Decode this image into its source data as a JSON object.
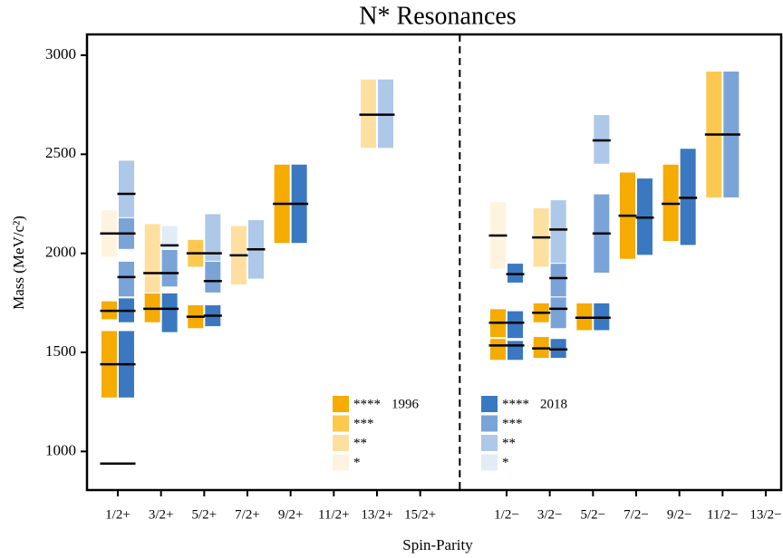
{
  "chart_data": {
    "type": "resonance",
    "title": "N* Resonances",
    "x_label": "Spin-Parity",
    "y_label": "Mass (MeV/c²)",
    "ylim": [
      805,
      3105
    ],
    "yticks": [
      1000,
      1500,
      2000,
      2500,
      3000
    ],
    "categories": [
      "1/2+",
      "3/2+",
      "5/2+",
      "7/2+",
      "9/2+",
      "11/2+",
      "13/2+",
      "15/2+",
      null,
      "1/2−",
      "3/2−",
      "5/2−",
      "7/2−",
      "9/2−",
      "11/2−",
      "13/2−"
    ],
    "ratings": [
      {
        "label": "****"
      },
      {
        "label": "***"
      },
      {
        "label": "**"
      },
      {
        "label": "*"
      }
    ],
    "series": [
      {
        "name": "1996",
        "colors": [
          "#f5ab00",
          "#fcc84f",
          "#fde0a0",
          "#fef3de"
        ],
        "values": [
          [
            {
              "mass": 939,
              "low": 939,
              "high": 939,
              "rating": "****"
            },
            {
              "mass": 1440,
              "low": 1270,
              "high": 1610,
              "rating": "****"
            },
            {
              "mass": 1710,
              "low": 1665,
              "high": 1760,
              "rating": "****"
            },
            {
              "mass": 2100,
              "low": 1980,
              "high": 2220,
              "rating": "*"
            }
          ],
          [
            {
              "mass": 1720,
              "low": 1650,
              "high": 1800,
              "rating": "****"
            },
            {
              "mass": 1900,
              "low": 1800,
              "high": 2150,
              "rating": "**"
            }
          ],
          [
            {
              "mass": 1680,
              "low": 1620,
              "high": 1740,
              "rating": "****"
            },
            {
              "mass": 2000,
              "low": 1930,
              "high": 2070,
              "rating": "***"
            }
          ],
          [
            {
              "mass": 1990,
              "low": 1840,
              "high": 2140,
              "rating": "**"
            }
          ],
          [
            {
              "mass": 2250,
              "low": 2050,
              "high": 2450,
              "rating": "****"
            }
          ],
          [],
          [
            {
              "mass": 2700,
              "low": 2530,
              "high": 2880,
              "rating": "**"
            }
          ],
          [],
          [],
          [
            {
              "mass": 1535,
              "low": 1460,
              "high": 1570,
              "rating": "****"
            },
            {
              "mass": 1650,
              "low": 1575,
              "high": 1720,
              "rating": "****"
            },
            {
              "mass": 2090,
              "low": 1920,
              "high": 2260,
              "rating": "*"
            }
          ],
          [
            {
              "mass": 1520,
              "low": 1470,
              "high": 1580,
              "rating": "****"
            },
            {
              "mass": 1700,
              "low": 1650,
              "high": 1750,
              "rating": "****"
            },
            {
              "mass": 2080,
              "low": 1930,
              "high": 2230,
              "rating": "**"
            }
          ],
          [
            {
              "mass": 1675,
              "low": 1610,
              "high": 1750,
              "rating": "****"
            }
          ],
          [
            {
              "mass": 2190,
              "low": 1970,
              "high": 2410,
              "rating": "****"
            }
          ],
          [
            {
              "mass": 2250,
              "low": 2060,
              "high": 2450,
              "rating": "****"
            }
          ],
          [
            {
              "mass": 2600,
              "low": 2280,
              "high": 2920,
              "rating": "***"
            }
          ],
          []
        ]
      },
      {
        "name": "2018",
        "colors": [
          "#3a78c2",
          "#7aa3d8",
          "#adc8e8",
          "#e2ecf7"
        ],
        "values": [
          [
            {
              "mass": 939,
              "low": 939,
              "high": 939,
              "rating": "****"
            },
            {
              "mass": 1440,
              "low": 1270,
              "high": 1610,
              "rating": "****"
            },
            {
              "mass": 1710,
              "low": 1650,
              "high": 1775,
              "rating": "****"
            },
            {
              "mass": 1880,
              "low": 1780,
              "high": 1960,
              "rating": "***"
            },
            {
              "mass": 2100,
              "low": 2020,
              "high": 2180,
              "rating": "***"
            },
            {
              "mass": 2300,
              "low": 2180,
              "high": 2470,
              "rating": "**"
            }
          ],
          [
            {
              "mass": 1720,
              "low": 1600,
              "high": 1800,
              "rating": "****"
            },
            {
              "mass": 1900,
              "low": 1830,
              "high": 2020,
              "rating": "***"
            },
            {
              "mass": 2040,
              "low": 2020,
              "high": 2140,
              "rating": "*"
            }
          ],
          [
            {
              "mass": 1685,
              "low": 1630,
              "high": 1740,
              "rating": "****"
            },
            {
              "mass": 1860,
              "low": 1800,
              "high": 1960,
              "rating": "***"
            },
            {
              "mass": 2000,
              "low": 1960,
              "high": 2200,
              "rating": "**"
            }
          ],
          [
            {
              "mass": 2020,
              "low": 1870,
              "high": 2170,
              "rating": "**"
            }
          ],
          [
            {
              "mass": 2250,
              "low": 2050,
              "high": 2450,
              "rating": "****"
            }
          ],
          [],
          [
            {
              "mass": 2700,
              "low": 2530,
              "high": 2880,
              "rating": "**"
            }
          ],
          [],
          [],
          [
            {
              "mass": 1535,
              "low": 1460,
              "high": 1560,
              "rating": "****"
            },
            {
              "mass": 1650,
              "low": 1570,
              "high": 1710,
              "rating": "****"
            },
            {
              "mass": 1895,
              "low": 1850,
              "high": 1950,
              "rating": "****"
            }
          ],
          [
            {
              "mass": 1515,
              "low": 1470,
              "high": 1570,
              "rating": "****"
            },
            {
              "mass": 1720,
              "low": 1620,
              "high": 1780,
              "rating": "***"
            },
            {
              "mass": 1875,
              "low": 1780,
              "high": 1950,
              "rating": "***"
            },
            {
              "mass": 2120,
              "low": 1950,
              "high": 2270,
              "rating": "**"
            }
          ],
          [
            {
              "mass": 1675,
              "low": 1610,
              "high": 1750,
              "rating": "****"
            },
            {
              "mass": 2100,
              "low": 1900,
              "high": 2300,
              "rating": "***"
            },
            {
              "mass": 2570,
              "low": 2450,
              "high": 2700,
              "rating": "**"
            }
          ],
          [
            {
              "mass": 2180,
              "low": 1990,
              "high": 2380,
              "rating": "****"
            }
          ],
          [
            {
              "mass": 2280,
              "low": 2040,
              "high": 2530,
              "rating": "****"
            }
          ],
          [
            {
              "mass": 2600,
              "low": 2280,
              "high": 2920,
              "rating": "***"
            }
          ],
          []
        ]
      }
    ]
  }
}
